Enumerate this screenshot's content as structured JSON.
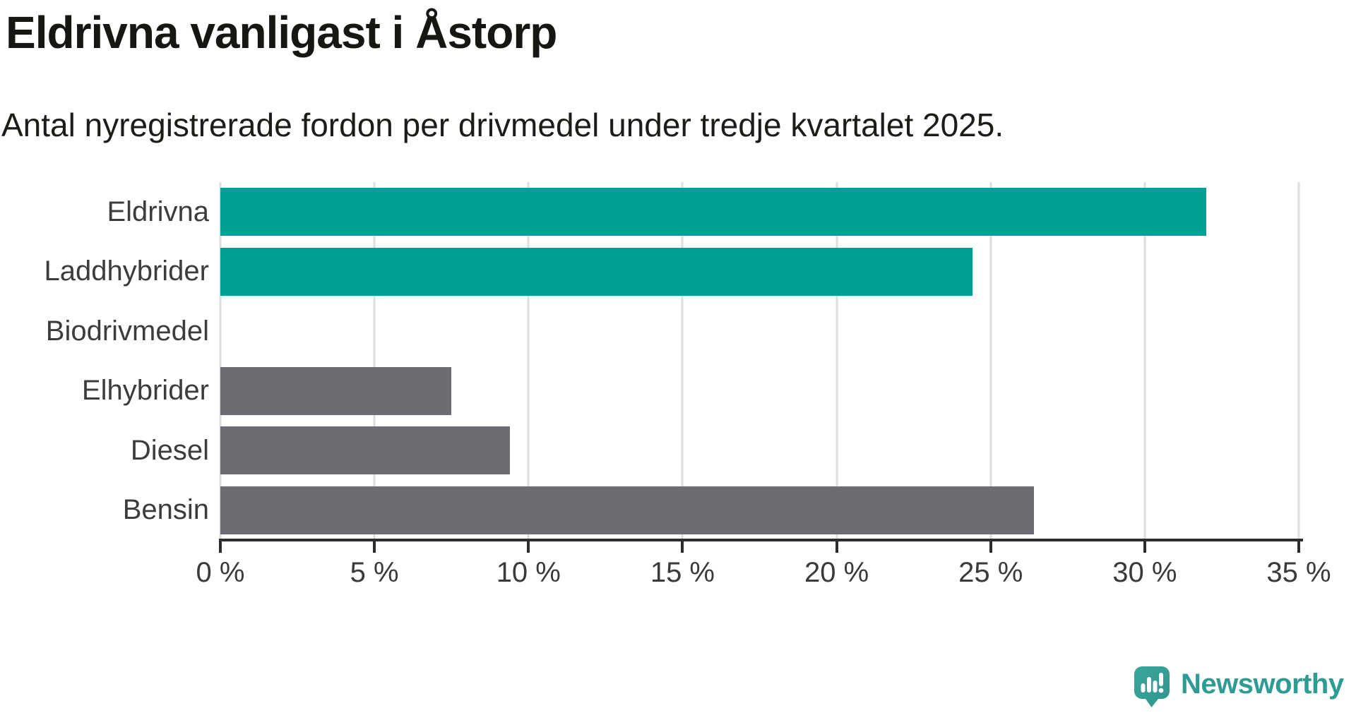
{
  "chart_data": {
    "type": "bar",
    "orientation": "horizontal",
    "title": "Eldrivna vanligast i Åstorp",
    "subtitle": "Antal nyregistrerade fordon per drivmedel under tredje kvartalet 2025.",
    "categories": [
      "Eldrivna",
      "Laddhybrider",
      "Biodrivmedel",
      "Elhybrider",
      "Diesel",
      "Bensin"
    ],
    "values": [
      32.0,
      24.4,
      0,
      7.5,
      9.4,
      26.4
    ],
    "unit": "%",
    "colors": [
      "#00a096",
      "#00a096",
      "#6c6c72",
      "#6c6c72",
      "#6c6c72",
      "#6c6c72"
    ],
    "xlim": [
      0,
      35
    ],
    "x_tick_values": [
      0,
      5,
      10,
      15,
      20,
      25,
      30,
      35
    ],
    "x_tick_labels": [
      "0 %",
      "5 %",
      "10 %",
      "15 %",
      "20 %",
      "25 %",
      "30 %",
      "35 %"
    ],
    "grid": "vertical-gridlines-on",
    "legend": "none",
    "xlabel": "",
    "ylabel": ""
  },
  "style_colors": {
    "bar_highlight": "#00a096",
    "bar_default": "#6c6c72",
    "gridline": "#dedede",
    "axis_line": "#2d2d2d",
    "title_text": "#161613",
    "label_text": "#3c3c3c",
    "brand_teal": "#2f9c94"
  },
  "branding": {
    "logo_text": "Newsworthy",
    "logo_icon": "speech-bubble-bar-chart-icon",
    "logo_color": "#2f9c94"
  }
}
